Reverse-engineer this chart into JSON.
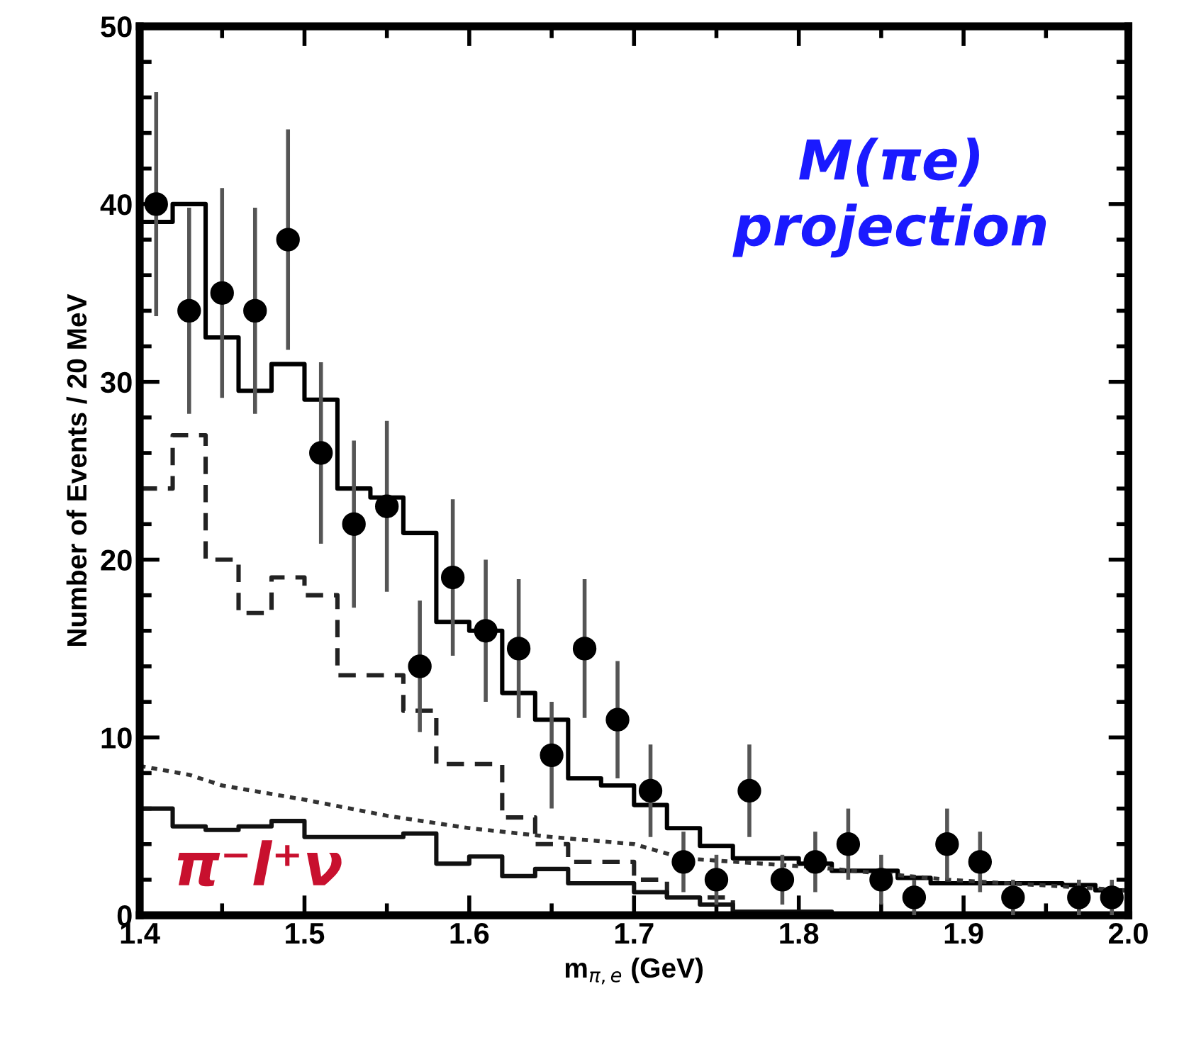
{
  "chart_data": {
    "type": "scatter",
    "xlabel": "m$_{π,e}$ (GeV)",
    "ylabel": "Number of Events / 20 MeV",
    "annotations": [
      "M(πe)\nprojection",
      "π⁻l⁺ν"
    ],
    "xlim": [
      1.4,
      2.0
    ],
    "ylim": [
      0,
      50
    ],
    "xticks": [
      1.4,
      {
        "value": 1.45,
        "label": null
      },
      1.5,
      {
        "value": 1.55,
        "label": null
      },
      1.6,
      {
        "value": 1.65,
        "label": null
      },
      1.7,
      {
        "value": 1.75,
        "label": null
      },
      1.8,
      {
        "value": 1.85,
        "label": null
      },
      1.9,
      {
        "value": 1.95,
        "label": null
      },
      {
        "value": 2.0,
        "label": "2.0"
      }
    ],
    "yticks": [
      0,
      {
        "value": 2,
        "label": null
      },
      {
        "value": 4,
        "label": null
      },
      {
        "value": 6,
        "label": null
      },
      {
        "value": 8,
        "label": null
      },
      10,
      {
        "value": 12,
        "label": null
      },
      {
        "value": 14,
        "label": null
      },
      {
        "value": 16,
        "label": null
      },
      {
        "value": 18,
        "label": null
      },
      20,
      {
        "value": 22,
        "label": null
      },
      {
        "value": 24,
        "label": null
      },
      {
        "value": 26,
        "label": null
      },
      {
        "value": 28,
        "label": null
      },
      30,
      {
        "value": 32,
        "label": null
      },
      {
        "value": 34,
        "label": null
      },
      {
        "value": 36,
        "label": null
      },
      {
        "value": 38,
        "label": null
      },
      40,
      {
        "value": 42,
        "label": null
      },
      {
        "value": 44,
        "label": null
      },
      {
        "value": 46,
        "label": null
      },
      {
        "value": 48,
        "label": null
      },
      50
    ],
    "grid": false,
    "series": [
      {
        "type": "step",
        "color": "#000000",
        "line_style": "solid",
        "x": [
          1.4,
          1.42,
          1.44,
          1.46,
          1.48,
          1.5,
          1.52,
          1.54,
          1.56,
          1.58,
          1.6,
          1.62,
          1.64,
          1.66,
          1.68,
          1.7,
          1.72,
          1.74,
          1.76,
          1.78,
          1.8,
          1.82,
          1.84,
          1.86,
          1.88,
          1.9,
          1.92,
          1.94,
          1.96,
          1.98,
          2.0
        ],
        "values": [
          39,
          40,
          32.5,
          29.5,
          31,
          29,
          24,
          23.5,
          21.5,
          16.5,
          16,
          12.5,
          11,
          7.7,
          7.3,
          6.2,
          4.9,
          3.9,
          3.2,
          3.2,
          2.9,
          2.5,
          2.5,
          2.1,
          1.8,
          1.8,
          1.8,
          1.8,
          1.7,
          1.4,
          1.4
        ]
      },
      {
        "type": "step",
        "color": "#222222",
        "line_style": "dashed",
        "x": [
          1.4,
          1.42,
          1.44,
          1.46,
          1.48,
          1.5,
          1.52,
          1.54,
          1.56,
          1.58,
          1.6,
          1.62,
          1.64,
          1.66,
          1.68,
          1.7,
          1.72,
          1.74,
          1.76,
          1.78,
          1.8
        ],
        "values": [
          24,
          27,
          20,
          17,
          19,
          18,
          13.5,
          13.5,
          11.5,
          8.5,
          8.5,
          5.5,
          4,
          3,
          3,
          2,
          1,
          1,
          0,
          0,
          0
        ]
      },
      {
        "type": "line",
        "color": "#333333",
        "line_style": "dotted",
        "x": [
          1.4,
          1.43,
          1.45,
          1.5,
          1.55,
          1.6,
          1.65,
          1.7,
          1.73,
          1.81,
          1.89,
          2.0
        ],
        "values": [
          8.4,
          7.9,
          7.3,
          6.5,
          5.6,
          4.9,
          4.4,
          4.0,
          3.2,
          2.7,
          2.0,
          1.4
        ]
      },
      {
        "type": "step",
        "color": "#111111",
        "line_style": "solid",
        "x": [
          1.4,
          1.42,
          1.44,
          1.46,
          1.48,
          1.5,
          1.52,
          1.54,
          1.56,
          1.58,
          1.6,
          1.62,
          1.64,
          1.66,
          1.68,
          1.7,
          1.72,
          1.74,
          1.76,
          1.78,
          1.8,
          1.82,
          1.84,
          1.86,
          1.88,
          1.9,
          1.92,
          1.94,
          1.96,
          1.98,
          2.0
        ],
        "values": [
          6,
          5,
          4.8,
          5,
          5.3,
          4.4,
          4.4,
          4.4,
          4.6,
          2.9,
          3.3,
          2.2,
          2.6,
          1.8,
          1.8,
          1.3,
          1,
          0.6,
          0.2,
          0.2,
          0.2,
          0,
          0,
          0,
          0,
          0,
          0,
          0,
          0,
          0,
          0
        ]
      },
      {
        "type": "scatter",
        "color": "#000000",
        "marker": "circle",
        "x": [
          1.41,
          1.43,
          1.45,
          1.47,
          1.49,
          1.51,
          1.53,
          1.55,
          1.57,
          1.59,
          1.61,
          1.63,
          1.65,
          1.67,
          1.69,
          1.71,
          1.73,
          1.75,
          1.77,
          1.79,
          1.81,
          1.83,
          1.85,
          1.87,
          1.89,
          1.91,
          1.93,
          1.97,
          1.99
        ],
        "values": [
          40,
          34,
          35,
          34,
          38,
          26,
          22,
          23,
          14,
          19,
          16,
          15,
          9,
          15,
          11,
          7,
          3,
          2,
          7,
          2,
          3,
          4,
          2,
          1,
          4,
          3,
          1,
          1,
          1
        ],
        "errors": [
          6.3,
          5.8,
          5.9,
          5.8,
          6.2,
          5.1,
          4.7,
          4.8,
          3.7,
          4.4,
          4,
          3.9,
          3,
          3.9,
          3.3,
          2.6,
          1.7,
          1.4,
          2.6,
          1.4,
          1.7,
          2,
          1.4,
          1,
          2,
          1.7,
          1,
          1,
          1
        ]
      }
    ]
  }
}
